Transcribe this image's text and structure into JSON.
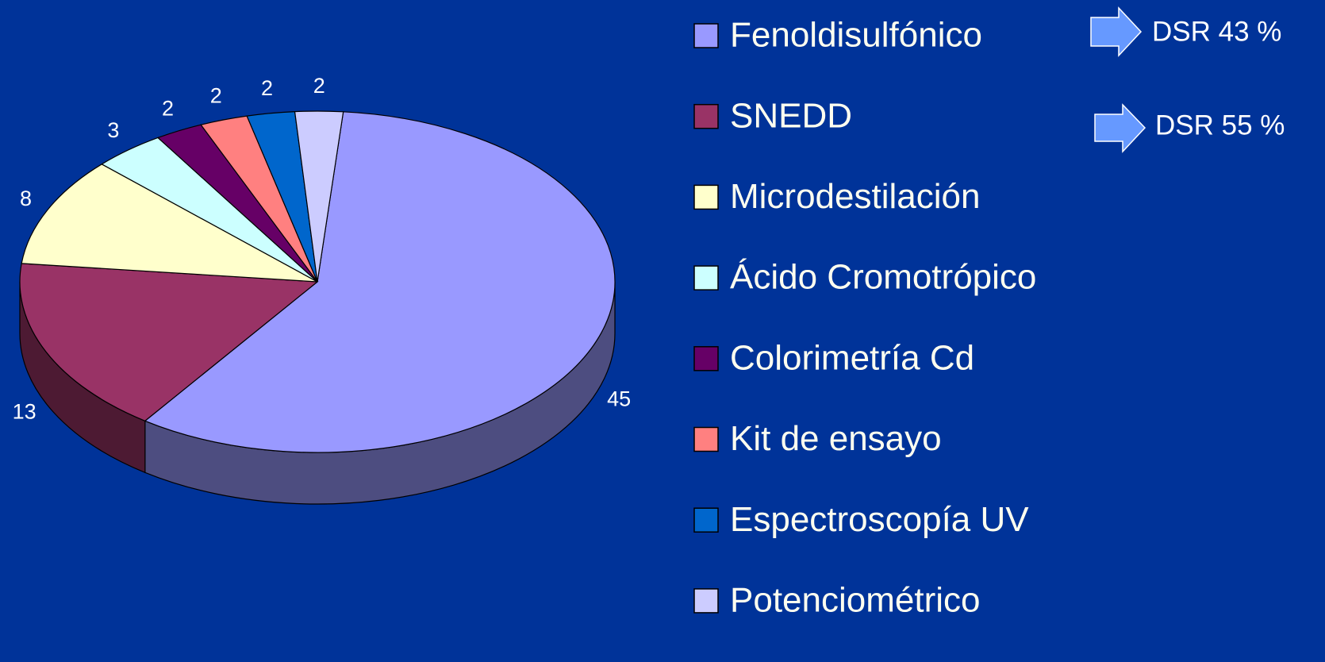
{
  "chart_data": {
    "type": "pie",
    "categories": [
      "Fenoldisulfónico",
      "SNEDD",
      "Microdestilación",
      "Ácido Cromotrópico",
      "Colorimetría Cd",
      "Kit de ensayo",
      "Espectroscopía UV",
      "Potenciométrico"
    ],
    "values": [
      45,
      13,
      8,
      3,
      2,
      2,
      2,
      2
    ],
    "colors": [
      "#9999ff",
      "#993366",
      "#ffffcc",
      "#ccffff",
      "#660066",
      "#ff8080",
      "#0066cc",
      "#ccccff"
    ],
    "annotations": [
      "DSR 43 %",
      "DSR 55 %"
    ]
  }
}
